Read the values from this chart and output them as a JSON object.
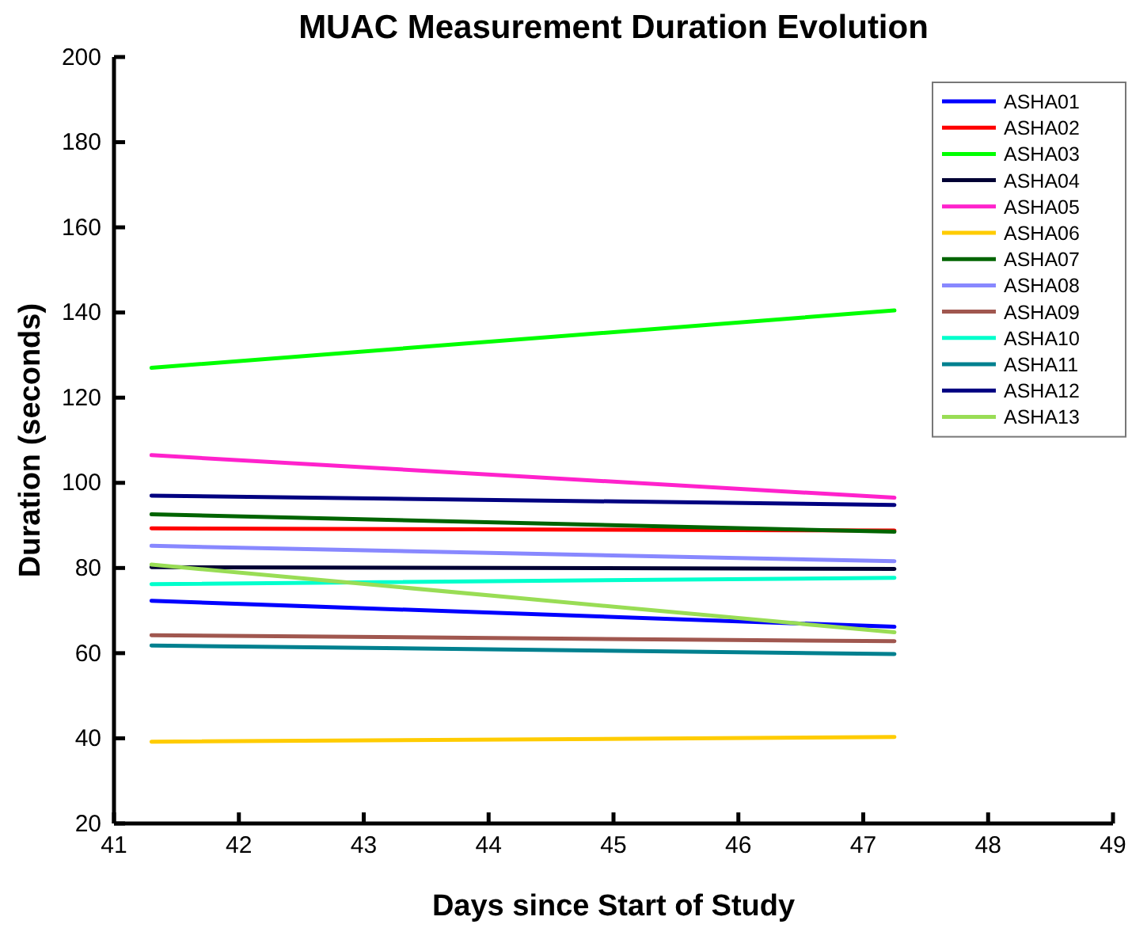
{
  "chart_data": {
    "type": "line",
    "title": "MUAC Measurement Duration Evolution",
    "xlabel": "Days since Start of Study",
    "ylabel": "Duration (seconds)",
    "xlim": [
      41,
      49
    ],
    "xticks": [
      41,
      42,
      43,
      44,
      45,
      46,
      47,
      48,
      49
    ],
    "ylim": [
      20,
      200
    ],
    "yticks": [
      20,
      40,
      60,
      80,
      100,
      120,
      140,
      160,
      180,
      200
    ],
    "x": [
      41.3,
      47.25
    ],
    "grid": false,
    "legend": "top right",
    "marker": "none",
    "line_style": "solid",
    "series": [
      {
        "name": "ASHA01",
        "color": "#0000ff",
        "values": [
          72.3,
          66.2
        ]
      },
      {
        "name": "ASHA02",
        "color": "#ff0000",
        "values": [
          89.3,
          88.8
        ]
      },
      {
        "name": "ASHA03",
        "color": "#00ff00",
        "values": [
          127,
          140.5
        ]
      },
      {
        "name": "ASHA04",
        "color": "#000033",
        "values": [
          80.2,
          79.8
        ]
      },
      {
        "name": "ASHA05",
        "color": "#ff22cc",
        "values": [
          106.5,
          96.5
        ]
      },
      {
        "name": "ASHA06",
        "color": "#ffcc00",
        "values": [
          39.2,
          40.3
        ]
      },
      {
        "name": "ASHA07",
        "color": "#006400",
        "values": [
          92.6,
          88.5
        ]
      },
      {
        "name": "ASHA08",
        "color": "#8888ff",
        "values": [
          85.2,
          81.6
        ]
      },
      {
        "name": "ASHA09",
        "color": "#a0574f",
        "values": [
          64.2,
          62.8
        ]
      },
      {
        "name": "ASHA10",
        "color": "#00ffcc",
        "values": [
          76.2,
          77.7
        ]
      },
      {
        "name": "ASHA11",
        "color": "#00808f",
        "values": [
          61.8,
          59.8
        ]
      },
      {
        "name": "ASHA12",
        "color": "#000080",
        "values": [
          97,
          94.8
        ]
      },
      {
        "name": "ASHA13",
        "color": "#99dd55",
        "values": [
          80.8,
          64.9
        ]
      }
    ]
  }
}
